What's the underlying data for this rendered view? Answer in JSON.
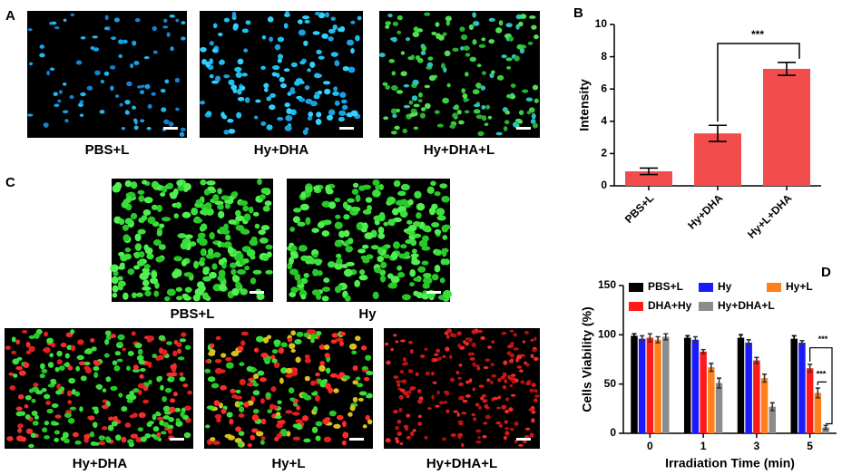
{
  "panels": [
    {
      "label": "A",
      "captions": [
        "PBS+L",
        "Hy+DHA",
        "Hy+DHA+L"
      ]
    },
    {
      "label": "C",
      "captions": [
        "PBS+L",
        "Hy",
        "Hy+DHA",
        "Hy+L",
        "Hy+DHA+L"
      ]
    }
  ],
  "chart_data": [
    {
      "type": "bar",
      "panel_label": "B",
      "y_label": "Intensity",
      "categories": [
        "PBS+L",
        "Hy+DHA",
        "Hy+L+DHA"
      ],
      "values": [
        0.9,
        3.25,
        7.25
      ],
      "errors": [
        0.2,
        0.5,
        0.4
      ],
      "color": "#f24c4c",
      "ylim": [
        0,
        10
      ],
      "yticks": [
        0,
        2,
        4,
        6,
        8,
        10
      ],
      "annotations": [
        "***"
      ]
    },
    {
      "type": "grouped_bar",
      "panel_label": "D",
      "y_label": "Cells Viability (%)",
      "x_label": "Irradiation Time (min)",
      "categories": [
        "0",
        "1",
        "3",
        "5"
      ],
      "series": [
        {
          "name": "PBS+L",
          "color": "#000000",
          "values": [
            99,
            97,
            97,
            96
          ],
          "errors": [
            2,
            2,
            3,
            3
          ]
        },
        {
          "name": "Hy",
          "color": "#1a1aff",
          "values": [
            96,
            95,
            92,
            92
          ],
          "errors": [
            3,
            3,
            3,
            2
          ]
        },
        {
          "name": "DHA+Hy",
          "color": "#ff1a1a",
          "values": [
            97,
            83,
            74,
            66
          ],
          "errors": [
            4,
            2,
            3,
            4
          ]
        },
        {
          "name": "Hy+L",
          "color": "#ff7f1a",
          "values": [
            95,
            67,
            56,
            41
          ],
          "errors": [
            3,
            4,
            4,
            5
          ]
        },
        {
          "name": "Hy+DHA+L",
          "color": "#8c8c8c",
          "values": [
            98,
            51,
            27,
            6
          ],
          "errors": [
            3,
            5,
            4,
            2
          ]
        }
      ],
      "ylim": [
        0,
        150
      ],
      "yticks": [
        0,
        50,
        100,
        150
      ],
      "annotations": [
        "***",
        "***"
      ]
    }
  ]
}
